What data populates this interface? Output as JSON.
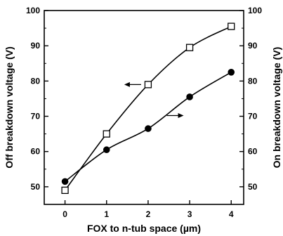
{
  "chart_data": {
    "type": "line",
    "xlabel": "FOX to n-tub space (µm)",
    "ylabel_left": "Off breakdown voltage (V)",
    "ylabel_right": "On breakdown voltage (V)",
    "xlim": [
      -0.5,
      4.3
    ],
    "ylim": [
      45,
      100
    ],
    "x_ticks": [
      0,
      1,
      2,
      3,
      4
    ],
    "y_ticks": [
      50,
      60,
      70,
      80,
      90,
      100
    ],
    "grid": false,
    "series": [
      {
        "axis": "left",
        "marker": "open-square",
        "arrow": "left",
        "x": [
          0,
          1,
          2,
          3,
          4
        ],
        "y": [
          49,
          65,
          79,
          89.5,
          95.5
        ]
      },
      {
        "axis": "right",
        "marker": "filled-circle",
        "arrow": "right",
        "x": [
          0,
          1,
          2,
          3,
          4
        ],
        "y": [
          51.5,
          60.5,
          66.5,
          75.5,
          82.5
        ]
      }
    ]
  }
}
